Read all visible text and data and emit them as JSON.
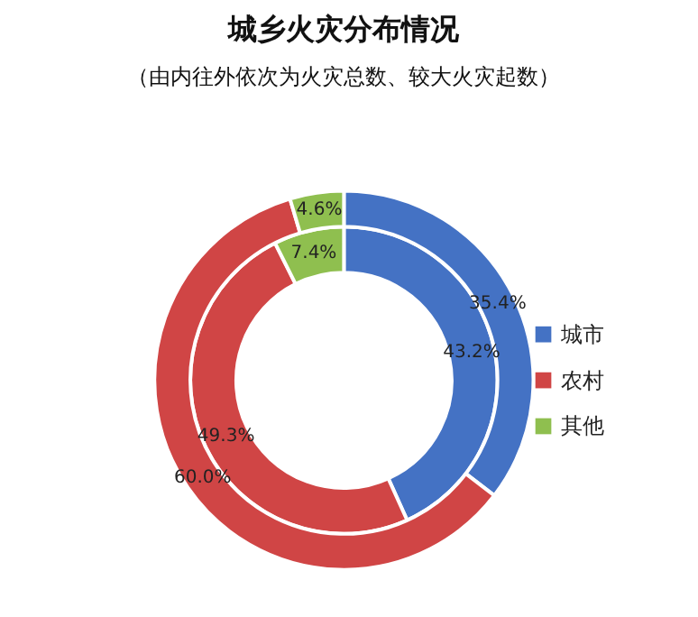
{
  "chart_data": {
    "type": "donut",
    "title": "城乡火灾分布情况",
    "subtitle": "（由内往外依次为火灾总数、较大火灾起数）",
    "categories": [
      "城市",
      "农村",
      "其他"
    ],
    "colors": [
      "#4472c4",
      "#d04545",
      "#8fbf4f"
    ],
    "legend": "right",
    "series": [
      {
        "values": [
          43.2,
          49.3,
          7.4
        ],
        "value_labels": [
          "43.2%",
          "49.3%",
          "7.4%"
        ]
      },
      {
        "values": [
          35.4,
          60.0,
          4.6
        ],
        "value_labels": [
          "35.4%",
          "60.0%",
          "4.6%"
        ]
      }
    ]
  }
}
